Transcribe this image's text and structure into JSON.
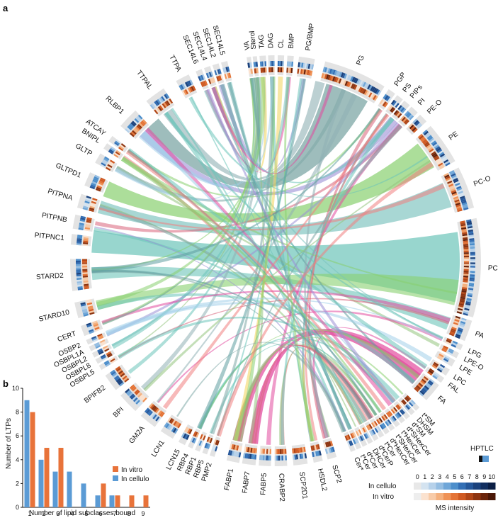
{
  "panel_a_label": "a",
  "panel_b_label": "b",
  "chart_data": [
    {
      "type": "chord",
      "ltps": [
        "VA",
        "Sterol",
        "TAG",
        "DAG",
        "CL",
        "BMP",
        "PG/BMP",
        "PG",
        "PGP",
        "PS",
        "PIPs",
        "PI",
        "PE-O",
        "PE",
        "PC-O",
        "PC",
        "PA",
        "LPG",
        "LPE-O",
        "LPE",
        "LPC",
        "FAL",
        "FA",
        "t*SM",
        "DHSM",
        "d*SM",
        "d*SHexCer",
        "t*HexCer",
        "t*SHexCer",
        "d*HexCer",
        "t*Cer",
        "d*CerP",
        "DHCer",
        "d*Cer",
        "t*Cer",
        "Cer*",
        "CERT",
        "OSBP2",
        "OSBPL1A",
        "OSBPL2",
        "OSBPL8",
        "OSBPL5",
        "BPIFB2",
        "BPI",
        "GM2A",
        "LCN1",
        "LCN15",
        "RBP4",
        "RBP1",
        "RBP5",
        "PMP2",
        "FABP1",
        "FABP7",
        "FABP5",
        "CRABP2",
        "SCP2D1",
        "HSDL2",
        "SCP2",
        "STARD10",
        "STARD2",
        "PITPNC1",
        "PITPNB",
        "PITPNA",
        "GLTPD1",
        "GLTP",
        "BNIPL",
        "ATCAY",
        "RLBP1",
        "TTPAL",
        "TTPA",
        "SEC14L6",
        "SEC14L4",
        "SEC14L2",
        "SEC14L5"
      ],
      "legend": {
        "hptlc_label": "HPTLC",
        "ms_label": "MS intensity",
        "rows": [
          "In cellulo",
          "In vitro"
        ],
        "scale_ticks": [
          "0",
          "1",
          "2",
          "3",
          "4",
          "5",
          "6",
          "7",
          "8",
          "9",
          "10"
        ],
        "in_cellulo_colors": [
          "#e8e8e8",
          "#d4e3f0",
          "#b6d1ea",
          "#94bde2",
          "#6fa6d8",
          "#4c8ecb",
          "#336fb5",
          "#25579a",
          "#1b427d",
          "#122f60",
          "#0b1f45"
        ],
        "in_vitro_colors": [
          "#eeeeee",
          "#fbe2cf",
          "#f8cba8",
          "#f4b07d",
          "#ef9256",
          "#e47336",
          "#d05a22",
          "#b04617",
          "#8d3410",
          "#6a240b",
          "#4a1707"
        ],
        "hptlc_colors": [
          "#111111",
          "#5b9bd5"
        ]
      }
    },
    {
      "type": "bar",
      "categories": [
        "1",
        "2",
        "3",
        "4",
        "5",
        "6",
        "7",
        "8",
        "9"
      ],
      "series": [
        {
          "name": "In vitro",
          "values": [
            8,
            5,
            5,
            0,
            0,
            2,
            1,
            1,
            1
          ]
        },
        {
          "name": "In cellulo",
          "values": [
            9,
            4,
            3,
            3,
            2,
            1,
            1,
            0,
            0
          ]
        }
      ],
      "xlabel": "Number of lipid subclasses bound",
      "ylabel": "Number of LTPs",
      "ylim": [
        0,
        10
      ],
      "yticks": [
        "0",
        "2",
        "4",
        "6",
        "8",
        "10"
      ],
      "colors": {
        "In vitro": "#e8733a",
        "In cellulo": "#5b9bd5"
      }
    }
  ]
}
